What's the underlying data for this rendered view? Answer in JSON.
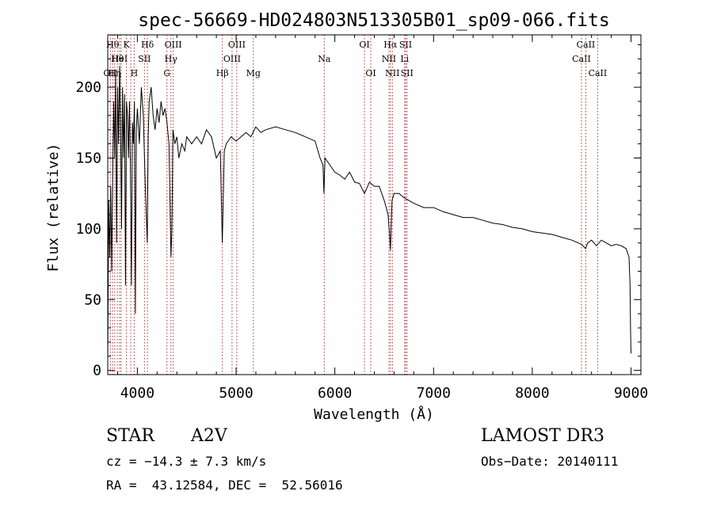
{
  "chart_data": {
    "type": "line",
    "title": "spec-56669-HD024803N513305B01_sp09-066.fits",
    "xlabel": "Wavelength (Å)",
    "ylabel": "Flux (relative)",
    "xlim": [
      3700,
      9100
    ],
    "ylim": [
      -3,
      237
    ],
    "xticks": [
      {
        "value": 4000,
        "label": "4000"
      },
      {
        "value": 5000,
        "label": "5000"
      },
      {
        "value": 6000,
        "label": "6000"
      },
      {
        "value": 7000,
        "label": "7000"
      },
      {
        "value": 8000,
        "label": "8000"
      },
      {
        "value": 9000,
        "label": "9000"
      }
    ],
    "yticks": [
      {
        "value": 0,
        "label": "0"
      },
      {
        "value": 50,
        "label": "50"
      },
      {
        "value": 100,
        "label": "100"
      },
      {
        "value": 150,
        "label": "150"
      },
      {
        "value": 200,
        "label": "200"
      }
    ],
    "series": [
      {
        "name": "flux",
        "x": [
          3700,
          3710,
          3720,
          3730,
          3740,
          3750,
          3760,
          3770,
          3780,
          3790,
          3800,
          3810,
          3820,
          3830,
          3840,
          3850,
          3860,
          3870,
          3880,
          3890,
          3900,
          3910,
          3920,
          3930,
          3940,
          3950,
          3960,
          3970,
          3980,
          3990,
          4000,
          4020,
          4040,
          4060,
          4080,
          4100,
          4110,
          4120,
          4140,
          4160,
          4180,
          4200,
          4220,
          4240,
          4260,
          4280,
          4300,
          4320,
          4340,
          4350,
          4360,
          4380,
          4400,
          4420,
          4450,
          4480,
          4500,
          4550,
          4600,
          4650,
          4700,
          4750,
          4800,
          4840,
          4860,
          4880,
          4900,
          4950,
          5000,
          5050,
          5100,
          5150,
          5200,
          5250,
          5300,
          5400,
          5500,
          5600,
          5700,
          5800,
          5850,
          5880,
          5890,
          5900,
          5920,
          5950,
          6000,
          6050,
          6100,
          6150,
          6200,
          6250,
          6300,
          6320,
          6350,
          6400,
          6450,
          6500,
          6540,
          6555,
          6563,
          6570,
          6580,
          6600,
          6650,
          6700,
          6750,
          6800,
          6900,
          7000,
          7100,
          7200,
          7300,
          7400,
          7500,
          7600,
          7700,
          7800,
          7900,
          8000,
          8100,
          8200,
          8300,
          8400,
          8500,
          8540,
          8560,
          8600,
          8650,
          8700,
          8750,
          8800,
          8850,
          8900,
          8950,
          8980,
          8990,
          8995,
          9000
        ],
        "y": [
          5,
          120,
          80,
          130,
          70,
          135,
          190,
          150,
          210,
          90,
          200,
          160,
          215,
          175,
          100,
          200,
          150,
          195,
          60,
          190,
          180,
          150,
          190,
          140,
          60,
          175,
          160,
          190,
          40,
          170,
          185,
          160,
          200,
          180,
          130,
          90,
          165,
          190,
          200,
          180,
          170,
          185,
          175,
          190,
          180,
          185,
          175,
          160,
          80,
          100,
          170,
          160,
          165,
          150,
          160,
          155,
          165,
          160,
          165,
          160,
          170,
          165,
          150,
          155,
          90,
          155,
          160,
          165,
          162,
          165,
          168,
          165,
          172,
          168,
          170,
          172,
          170,
          168,
          165,
          162,
          150,
          145,
          125,
          150,
          148,
          145,
          140,
          138,
          135,
          140,
          133,
          132,
          125,
          128,
          133,
          130,
          130,
          120,
          110,
          95,
          85,
          100,
          120,
          125,
          125,
          122,
          120,
          118,
          115,
          115,
          112,
          110,
          108,
          108,
          106,
          104,
          103,
          101,
          100,
          98,
          97,
          96,
          94,
          92,
          89,
          86,
          90,
          92,
          88,
          92,
          90,
          88,
          89,
          88,
          86,
          80,
          60,
          30,
          12
        ]
      }
    ],
    "line_markers": [
      {
        "x": 3727,
        "label": "OII",
        "row": 2
      },
      {
        "x": 3750,
        "label": "Hθ",
        "row": 0
      },
      {
        "x": 3771,
        "label": "Hη",
        "row": 2
      },
      {
        "x": 3798,
        "label": "Hθ",
        "row": 1
      },
      {
        "x": 3820,
        "label": "HeI",
        "row": 1
      },
      {
        "x": 3835,
        "label": "",
        "row": 0
      },
      {
        "x": 3889,
        "label": "K",
        "row": 0
      },
      {
        "x": 3933,
        "label": "",
        "row": 0
      },
      {
        "x": 3968,
        "label": "H",
        "row": 2
      },
      {
        "x": 4072,
        "label": "SII",
        "row": 1
      },
      {
        "x": 4102,
        "label": "Hδ",
        "row": 0
      },
      {
        "x": 4300,
        "label": "G",
        "row": 2
      },
      {
        "x": 4340,
        "label": "Hγ",
        "row": 1
      },
      {
        "x": 4363,
        "label": "OIII",
        "row": 0
      },
      {
        "x": 4861,
        "label": "Hβ",
        "row": 2
      },
      {
        "x": 4959,
        "label": "OIII",
        "row": 1
      },
      {
        "x": 5007,
        "label": "OIII",
        "row": 0
      },
      {
        "x": 5175,
        "label": "Mg",
        "row": 2
      },
      {
        "x": 5893,
        "label": "Na",
        "row": 1
      },
      {
        "x": 6300,
        "label": "OI",
        "row": 0
      },
      {
        "x": 6364,
        "label": "OI",
        "row": 2
      },
      {
        "x": 6548,
        "label": "NII",
        "row": 1
      },
      {
        "x": 6563,
        "label": "Hα",
        "row": 0
      },
      {
        "x": 6583,
        "label": "NII",
        "row": 2
      },
      {
        "x": 6707,
        "label": "Li",
        "row": 1
      },
      {
        "x": 6717,
        "label": "SII",
        "row": 0
      },
      {
        "x": 6731,
        "label": "SII",
        "row": 2
      },
      {
        "x": 8498,
        "label": "CaII",
        "row": 1
      },
      {
        "x": 8542,
        "label": "CaII",
        "row": 0
      },
      {
        "x": 8662,
        "label": "CaII",
        "row": 2
      }
    ]
  },
  "info": {
    "object_type": "STAR",
    "spectral_class": "A2V",
    "survey": "LAMOST DR3",
    "cz": "cz = −14.3 ± 7.3 km/s",
    "obs_date": "Obs−Date: 20140111",
    "coords": "RA =  43.12584, DEC =  52.56016"
  }
}
